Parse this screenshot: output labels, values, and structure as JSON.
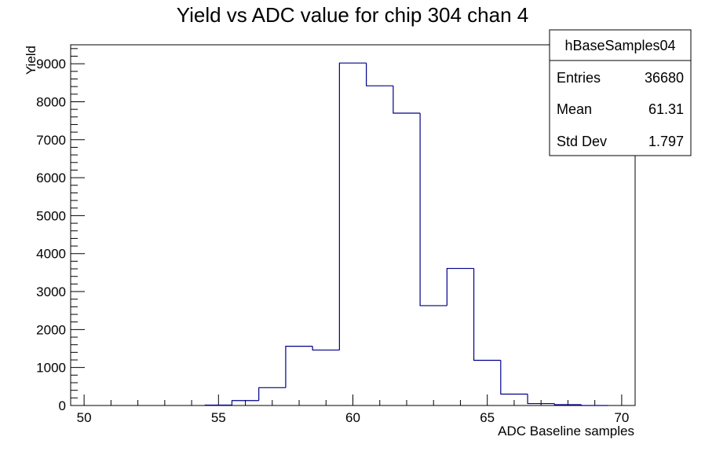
{
  "chart_data": {
    "type": "histogram",
    "title": "Yield vs ADC value for chip 304 chan 4",
    "xlabel": "ADC Baseline samples",
    "ylabel": "Yield",
    "xlim": [
      49.5,
      70.5
    ],
    "ylim": [
      0,
      9500
    ],
    "x_ticks": [
      50,
      55,
      60,
      65,
      70
    ],
    "y_ticks": [
      0,
      1000,
      2000,
      3000,
      4000,
      5000,
      6000,
      7000,
      8000,
      9000
    ],
    "bin_width": 1,
    "bins": [
      {
        "low": 54.5,
        "value": 10
      },
      {
        "low": 55.5,
        "value": 130
      },
      {
        "low": 56.5,
        "value": 470
      },
      {
        "low": 57.5,
        "value": 1560
      },
      {
        "low": 58.5,
        "value": 1460
      },
      {
        "low": 59.5,
        "value": 9020
      },
      {
        "low": 60.5,
        "value": 8420
      },
      {
        "low": 61.5,
        "value": 7700
      },
      {
        "low": 62.5,
        "value": 2630
      },
      {
        "low": 63.5,
        "value": 3610
      },
      {
        "low": 64.5,
        "value": 1190
      },
      {
        "low": 65.5,
        "value": 300
      },
      {
        "low": 66.5,
        "value": 50
      },
      {
        "low": 67.5,
        "value": 20
      },
      {
        "low": 68.5,
        "value": 0
      }
    ],
    "line_color": "#00008b",
    "grid": false,
    "legend_position": "top-right"
  },
  "stats_box": {
    "name": "hBaseSamples04",
    "rows": [
      {
        "label": "Entries",
        "value": "36680"
      },
      {
        "label": "Mean",
        "value": "61.31"
      },
      {
        "label": "Std Dev",
        "value": "1.797"
      }
    ]
  }
}
